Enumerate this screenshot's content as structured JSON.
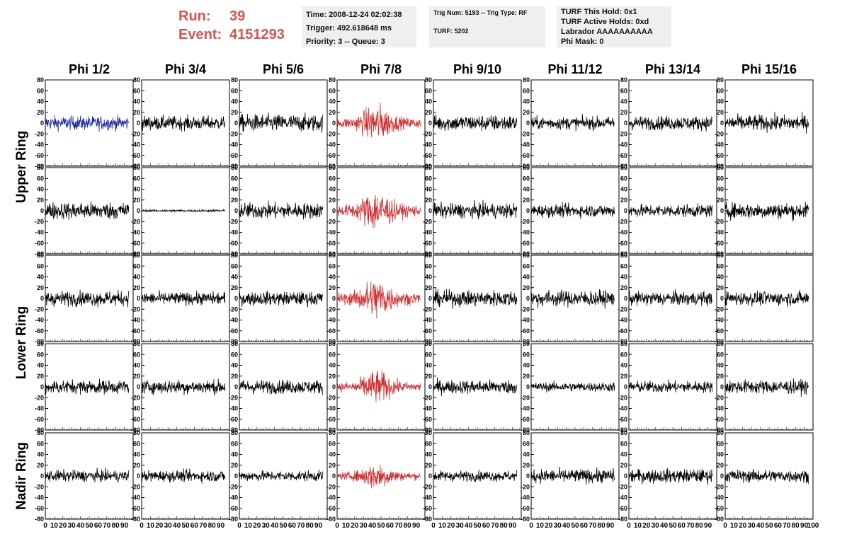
{
  "header": {
    "run_label": "Run:",
    "run_value": "39",
    "event_label": "Event:",
    "event_value": "4151293",
    "accent_color": "#d9534f"
  },
  "time_panel": {
    "time": "Time: 2008-12-24 02:02:38",
    "trigger": "Trigger: 492.618648 ms",
    "priority": "Priority: 3 -- Queue: 3"
  },
  "trig_panel": {
    "trig": "Trig Num: 5193 -- Trig Type: RF",
    "turf": "TURF: 5202"
  },
  "turf_panel": {
    "this_hold": "TURF This Hold: 0x1",
    "active_holds": "TURF Active Holds: 0xd",
    "labrador": "Labrador AAAAAAAAAA",
    "phi_mask": "Phi Mask: 0"
  },
  "chart_data": {
    "type": "line",
    "columns": [
      "Phi 1/2",
      "Phi 3/4",
      "Phi 5/6",
      "Phi 7/8",
      "Phi 9/10",
      "Phi 11/12",
      "Phi 13/14",
      "Phi 15/16"
    ],
    "ring_labels": [
      "Upper Ring",
      "Lower Ring",
      "Nadir Ring"
    ],
    "rows_per_ring": [
      2,
      2,
      1
    ],
    "ylim": [
      -80,
      80
    ],
    "yticks": [
      "80",
      "60",
      "40",
      "20",
      "0",
      "-20",
      "-40",
      "-60",
      "-80"
    ],
    "xlim": [
      0,
      100
    ],
    "xtick_labels": [
      "0",
      "10",
      "20",
      "30",
      "40",
      "50",
      "60",
      "70",
      "80",
      "90",
      "100"
    ],
    "colors": {
      "default": "#000000",
      "triggered": "#d03030",
      "highlight": "#1f2aa0"
    },
    "triggered_column": "Phi 7/8",
    "highlight_cell": {
      "row": 0,
      "column": "Phi 1/2"
    },
    "approx_amplitude": [
      [
        12,
        12,
        15,
        25,
        14,
        11,
        12,
        14
      ],
      [
        15,
        2,
        14,
        28,
        13,
        11,
        11,
        14
      ],
      [
        13,
        11,
        12,
        28,
        14,
        14,
        12,
        12
      ],
      [
        12,
        12,
        12,
        22,
        12,
        8,
        10,
        12
      ],
      [
        10,
        10,
        9,
        18,
        9,
        12,
        12,
        11
      ]
    ]
  }
}
